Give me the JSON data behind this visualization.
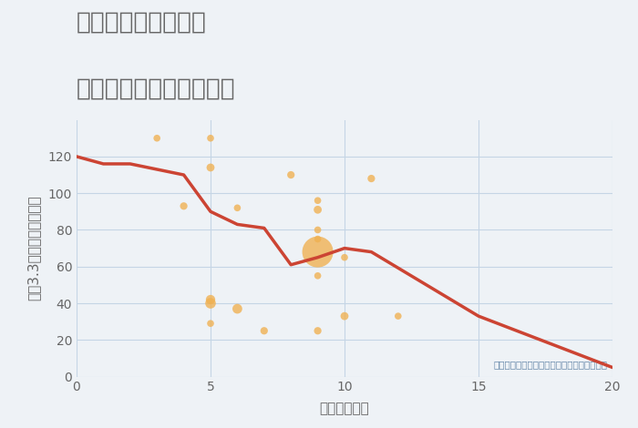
{
  "title_line1": "愛知県清須市桃栄の",
  "title_line2": "駅距離別中古戸建て価格",
  "xlabel": "駅距離（分）",
  "ylabel": "坪（3.3㎡）単価（万円）",
  "annotation": "円の大きさは、取引のあった物件面積を示す",
  "background_color": "#eef2f6",
  "plot_bg_color": "#eef2f6",
  "line_color": "#cc4433",
  "line_x": [
    0,
    1,
    2,
    3,
    4,
    5,
    6,
    7,
    8,
    9,
    10,
    11,
    15,
    20
  ],
  "line_y": [
    120,
    116,
    116,
    113,
    110,
    90,
    83,
    81,
    61,
    65,
    70,
    68,
    33,
    5
  ],
  "scatter_x": [
    3,
    4,
    5,
    5,
    5,
    5,
    6,
    6,
    7,
    8,
    9,
    9,
    9,
    9,
    9,
    9,
    9,
    10,
    10,
    11,
    12
  ],
  "scatter_y": [
    130,
    93,
    114,
    42,
    40,
    29,
    37,
    92,
    25,
    110,
    96,
    91,
    80,
    75,
    55,
    25,
    68,
    65,
    33,
    108,
    33
  ],
  "scatter_sizes": [
    30,
    35,
    40,
    55,
    70,
    30,
    60,
    30,
    35,
    35,
    30,
    40,
    30,
    30,
    30,
    35,
    600,
    30,
    40,
    35,
    30
  ],
  "scatter_x2": [
    5
  ],
  "scatter_y2": [
    130
  ],
  "scatter_sizes2": [
    30
  ],
  "scatter_color": "#f0b050",
  "scatter_alpha": 0.78,
  "xlim": [
    0,
    20
  ],
  "ylim": [
    0,
    140
  ],
  "xticks": [
    0,
    5,
    10,
    15,
    20
  ],
  "yticks": [
    0,
    20,
    40,
    60,
    80,
    100,
    120
  ],
  "grid_color": "#c5d5e5",
  "title_color": "#666666",
  "label_color": "#666666",
  "annotation_color": "#6688aa",
  "title_fontsize": 19,
  "axis_label_fontsize": 11,
  "tick_fontsize": 10
}
